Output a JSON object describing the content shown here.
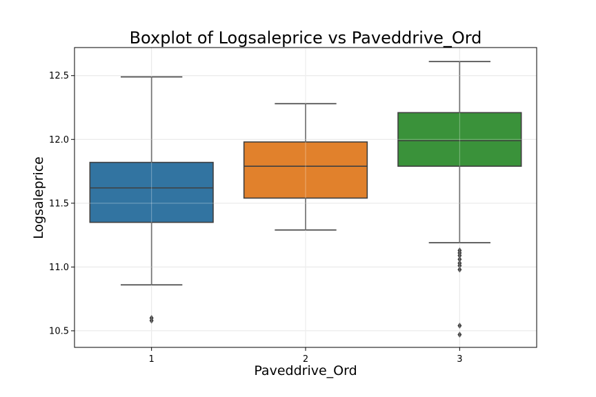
{
  "chart_data": {
    "type": "boxplot",
    "title": "Boxplot of Logsaleprice vs Paveddrive_Ord",
    "xlabel": "Paveddrive_Ord",
    "ylabel": "Logsaleprice",
    "categories": [
      "1",
      "2",
      "3"
    ],
    "yticks": [
      "10.5",
      "11.0",
      "11.5",
      "12.0",
      "12.5"
    ],
    "ylim": [
      10.37,
      12.72
    ],
    "grid": true,
    "boxes": [
      {
        "category": "1",
        "color": "#3274a1",
        "whisker_low": 10.86,
        "q1": 11.35,
        "median": 11.62,
        "q3": 11.82,
        "whisker_high": 12.49,
        "outliers": [
          10.58,
          10.6
        ]
      },
      {
        "category": "2",
        "color": "#e1812c",
        "whisker_low": 11.29,
        "q1": 11.54,
        "median": 11.79,
        "q3": 11.98,
        "whisker_high": 12.28,
        "outliers": []
      },
      {
        "category": "3",
        "color": "#3a923a",
        "whisker_low": 11.19,
        "q1": 11.79,
        "median": 11.99,
        "q3": 12.21,
        "whisker_high": 12.61,
        "outliers": [
          11.13,
          11.11,
          11.09,
          11.06,
          11.03,
          11.01,
          10.98,
          10.54,
          10.47
        ]
      }
    ]
  }
}
